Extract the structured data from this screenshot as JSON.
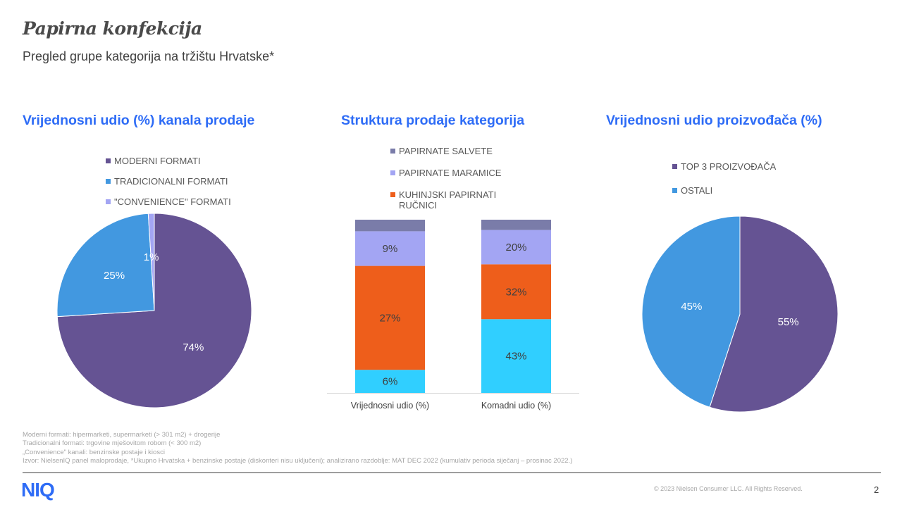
{
  "header": {
    "title": "Papirna konfekcija",
    "subtitle": "Pregled grupe kategorija na tržištu Hrvatske*"
  },
  "chart_data": [
    {
      "type": "pie",
      "title": "Vrijednosni  udio (%) kanala prodaje",
      "legend_position": "top",
      "slices": [
        {
          "name": "MODERNI FORMATI",
          "value": 74,
          "label": "74%",
          "color": "#655393"
        },
        {
          "name": "TRADICIONALNI FORMATI",
          "value": 25,
          "label": "25%",
          "color": "#4298e0"
        },
        {
          "name": "\"CONVENIENCE\" FORMATI",
          "value": 1,
          "label": "1%",
          "color": "#a3a5f3"
        }
      ]
    },
    {
      "type": "bar",
      "stacked": true,
      "normalized": true,
      "title": "Struktura prodaje kategorija",
      "legend_position": "top",
      "categories": [
        "Vrijednosni udio (%)",
        "Komadni udio (%)"
      ],
      "series": [
        {
          "name": "",
          "values": [
            6,
            43
          ],
          "labels": [
            "6%",
            "43%"
          ],
          "color": "#30cfff"
        },
        {
          "name": "KUHINJSKI PAPIRNATI RUČNICI",
          "values": [
            27,
            32
          ],
          "labels": [
            "27%",
            "32%"
          ],
          "color": "#ee5e1b"
        },
        {
          "name": "PAPIRNATE MARAMICE",
          "values": [
            9,
            20
          ],
          "labels": [
            "9%",
            "20%"
          ],
          "color": "#a3a5f3"
        },
        {
          "name": "PAPIRNATE SALVETE",
          "values": [
            3,
            6
          ],
          "labels": [
            "",
            ""
          ],
          "color": "#7a7ca9"
        }
      ]
    },
    {
      "type": "pie",
      "title": "Vrijednosni  udio proizvođača (%)",
      "legend_position": "top",
      "slices": [
        {
          "name": "TOP 3 PROIZVOĐAČA",
          "value": 55,
          "label": "55%",
          "color": "#655393"
        },
        {
          "name": "OSTALI",
          "value": 45,
          "label": "45%",
          "color": "#4298e0"
        }
      ]
    }
  ],
  "footnotes": [
    "Moderni formati: hipermarketi, supermarketi (> 301 m2) + drogerije",
    "Tradicionalni formati: trgovine mješovitom robom (< 300 m2)",
    "„Convenience\" kanali: benzinske postaje i kiosci",
    "Izvor: NielsenIQ  panel maloprodaje, *Ukupno  Hrvatska + benzinske postaje (diskonteri nisu uključeni); analizirano razdoblje: MAT DEC  2022 (kumulativ  perioda siječanj – prosinac 2022.)"
  ],
  "footer": {
    "logo": "NIQ",
    "copyright": "© 2023  Nielsen Consumer LLC. All Rights Reserved.",
    "page": "2"
  }
}
